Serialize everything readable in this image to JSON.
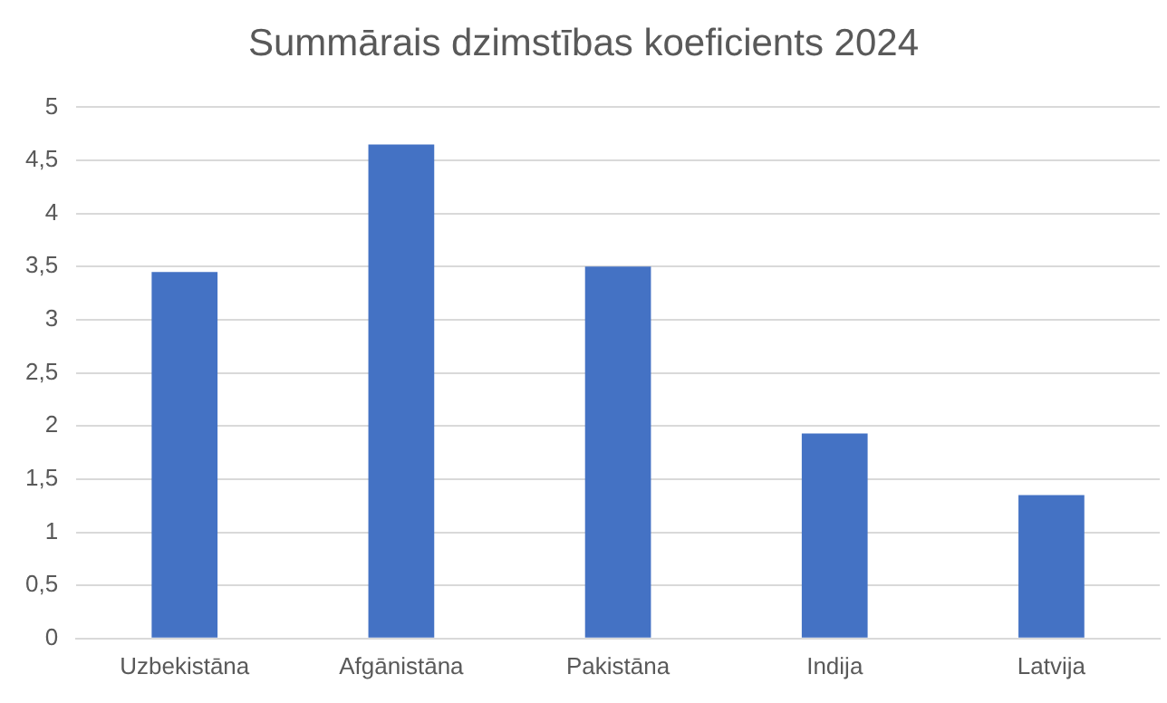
{
  "chart_data": {
    "type": "bar",
    "title": "Summārais dzimstības koeficients 2024",
    "categories": [
      "Uzbekistāna",
      "Afgānistāna",
      "Pakistāna",
      "Indija",
      "Latvija"
    ],
    "values": [
      3.45,
      4.65,
      3.5,
      1.93,
      1.35
    ],
    "color": "#4472c4",
    "ylim": [
      0,
      5
    ],
    "yticks": [
      0,
      {
        "value": 0.5,
        "label": "0,5"
      },
      1,
      {
        "value": 1.5,
        "label": "1,5"
      },
      2,
      {
        "value": 2.5,
        "label": "2,5"
      },
      3,
      {
        "value": 3.5,
        "label": "3,5"
      },
      4,
      {
        "value": 4.5,
        "label": "4,5"
      },
      5
    ],
    "grid": "y",
    "legend": false
  }
}
